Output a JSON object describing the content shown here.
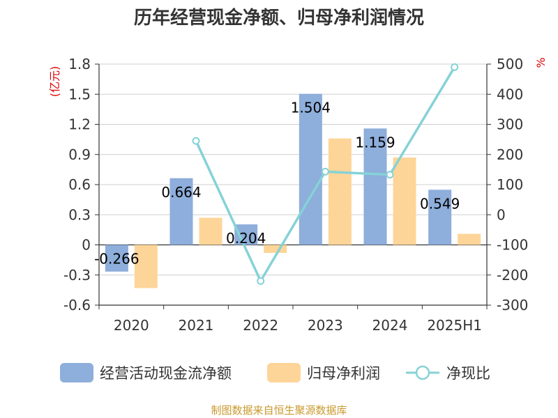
{
  "chart_data": {
    "type": "bar",
    "title": "历年经营现金净额、归母净利润情况",
    "categories": [
      "2020",
      "2021",
      "2022",
      "2023",
      "2024",
      "2025H1"
    ],
    "left_axis": {
      "unit": "(亿元)",
      "ticks": [
        "1.8",
        "1.5",
        "1.2",
        "0.9",
        "0.6",
        "0.3",
        "0",
        "-0.3",
        "-0.6"
      ],
      "ylim": [
        -0.6,
        1.8
      ]
    },
    "right_axis": {
      "unit": "%",
      "ticks": [
        "500",
        "400",
        "300",
        "200",
        "100",
        "0",
        "-100",
        "-200",
        "-300"
      ],
      "ylim": [
        -300,
        500
      ]
    },
    "series": [
      {
        "name": "经营活动现金流净额",
        "type": "bar",
        "axis": "left",
        "color": "#8eaedb",
        "values": [
          -0.266,
          0.664,
          0.204,
          1.504,
          1.159,
          0.549
        ],
        "labels": [
          "-0.266",
          "0.664",
          "0.204",
          "1.504",
          "1.159",
          "0.549"
        ]
      },
      {
        "name": "归母净利润",
        "type": "bar",
        "axis": "left",
        "color": "#fed598",
        "values": [
          -0.43,
          0.27,
          -0.08,
          1.06,
          0.87,
          0.11
        ]
      },
      {
        "name": "净现比",
        "type": "line",
        "axis": "right",
        "color": "#85d2d6",
        "values": [
          null,
          245,
          -220,
          143,
          133,
          490
        ]
      }
    ],
    "legend_position": "bottom",
    "grid": true
  },
  "footer": {
    "source": "制图数据来自恒生聚源数据库"
  }
}
